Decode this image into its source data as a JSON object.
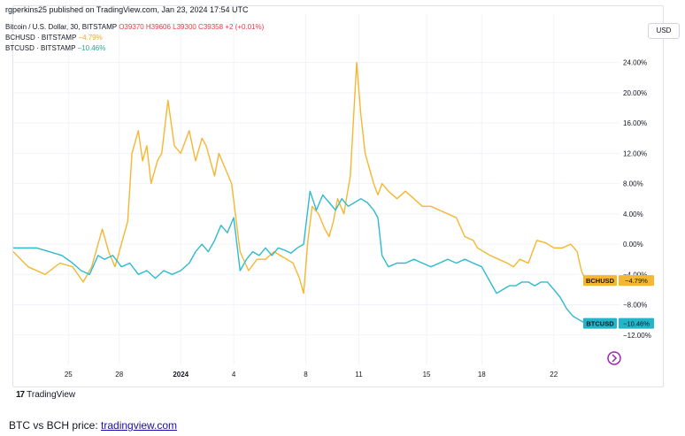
{
  "publisher_line": "rgperkins25 published on TradingView.com, Jan 23, 2024 17:54 UTC",
  "legend": {
    "main_symbol": "Bitcoin / U.S. Dollar, 30, BITSTAMP",
    "ohlc": "O39370 H39606 L39300 C39358 +2 (+0.01%)",
    "bch_label": "BCHUSD · BITSTAMP",
    "bch_change": "−4.79%",
    "btc_label": "BTCUSD · BITSTAMP",
    "btc_change": "−10.46%"
  },
  "currency": "USD",
  "footer": {
    "brand": "TradingView",
    "logo_glyph": "17"
  },
  "caption": {
    "text": "BTC vs BCH price: ",
    "link": "tradingview.com"
  },
  "chart_data": {
    "type": "line",
    "y_unit": "% change",
    "ylim": [
      -16,
      27
    ],
    "ytick_values": [
      24,
      20,
      16,
      12,
      8,
      4,
      0,
      -4,
      -8,
      -12
    ],
    "ytick_labels": [
      "24.00%",
      "20.00%",
      "16.00%",
      "12.00%",
      "8.00%",
      "4.00%",
      "0.00%",
      "−4.00%",
      "−8.00%",
      "−12.00%"
    ],
    "x_tick_labels": [
      "25",
      "28",
      "2024",
      "4",
      "8",
      "11",
      "15",
      "18",
      "22"
    ],
    "x_tick_positions": [
      1.3,
      3.7,
      6.6,
      9.1,
      12.5,
      15.0,
      18.2,
      20.8,
      24.2
    ],
    "xlim": [
      -1.3,
      27.3
    ],
    "grid": true,
    "legend_position": "top-left",
    "series": [
      {
        "name": "BCHUSD",
        "color": "#f5b731",
        "end_label": "BCHUSD",
        "end_value_label": "−4.79%",
        "x": [
          -1.3,
          -0.6,
          0.2,
          0.9,
          1.5,
          2.0,
          2.4,
          2.7,
          2.9,
          3.2,
          3.5,
          3.7,
          3.9,
          4.1,
          4.3,
          4.6,
          4.8,
          5.0,
          5.2,
          5.5,
          5.7,
          6.0,
          6.3,
          6.6,
          7.0,
          7.3,
          7.6,
          7.8,
          8.0,
          8.2,
          8.4,
          8.7,
          9.0,
          9.4,
          9.8,
          10.2,
          10.6,
          11.0,
          11.3,
          11.6,
          11.9,
          12.2,
          12.4,
          12.6,
          12.8,
          13.1,
          13.4,
          13.6,
          13.8,
          14.0,
          14.3,
          14.6,
          14.8,
          14.9,
          15.1,
          15.3,
          15.5,
          15.7,
          15.9,
          16.1,
          16.4,
          16.8,
          17.2,
          17.6,
          18.0,
          18.4,
          18.8,
          19.2,
          19.6,
          20.0,
          20.4,
          20.6,
          20.9,
          21.2,
          21.6,
          22.0,
          22.3,
          22.6,
          23.0,
          23.4,
          23.8,
          24.2,
          24.6,
          25.0,
          25.3,
          25.5,
          25.7
        ],
        "values": [
          -1.0,
          -3.0,
          -4.0,
          -2.5,
          -3.0,
          -5.0,
          -3.0,
          0.0,
          2.0,
          -1.0,
          -3.0,
          -1.0,
          1.0,
          3.0,
          12.0,
          15.0,
          11.0,
          13.0,
          8.0,
          11.0,
          12.0,
          19.0,
          13.0,
          12.0,
          15.0,
          11.0,
          14.0,
          13.0,
          11.0,
          9.0,
          12.0,
          10.0,
          8.0,
          -1.0,
          -3.5,
          -2.0,
          -2.0,
          -1.0,
          -1.5,
          -2.0,
          -2.5,
          -4.5,
          -6.5,
          0.5,
          5.0,
          4.0,
          2.0,
          1.0,
          3.0,
          6.0,
          4.0,
          9.0,
          19.0,
          24.0,
          17.0,
          12.0,
          10.0,
          8.0,
          6.5,
          8.0,
          7.0,
          6.0,
          7.0,
          6.0,
          5.0,
          5.0,
          4.5,
          4.0,
          3.5,
          1.0,
          0.5,
          -0.5,
          -1.0,
          -1.5,
          -2.0,
          -2.5,
          -3.0,
          -2.0,
          -2.5,
          0.5,
          0.2,
          -0.5,
          -0.5,
          0.0,
          -1.0,
          -3.5,
          -4.79
        ]
      },
      {
        "name": "BTCUSD",
        "color": "#2ebbcd",
        "end_label": "BTCUSD",
        "end_value_label": "−10.46%",
        "x": [
          -1.3,
          -0.8,
          -0.2,
          0.4,
          1.0,
          1.5,
          1.9,
          2.3,
          2.7,
          3.0,
          3.4,
          3.8,
          4.2,
          4.6,
          5.0,
          5.4,
          5.8,
          6.2,
          6.6,
          7.0,
          7.3,
          7.6,
          7.9,
          8.2,
          8.5,
          8.8,
          9.1,
          9.4,
          9.7,
          10.0,
          10.3,
          10.6,
          10.9,
          11.2,
          11.5,
          11.8,
          12.1,
          12.4,
          12.7,
          13.0,
          13.3,
          13.6,
          13.9,
          14.2,
          14.5,
          14.8,
          15.1,
          15.4,
          15.7,
          15.9,
          16.1,
          16.4,
          16.8,
          17.2,
          17.6,
          18.0,
          18.4,
          18.8,
          19.2,
          19.6,
          20.0,
          20.4,
          20.8,
          21.2,
          21.5,
          21.8,
          22.1,
          22.4,
          22.7,
          23.0,
          23.3,
          23.6,
          23.9,
          24.2,
          24.5,
          24.8,
          25.1,
          25.4,
          25.7
        ],
        "values": [
          -0.5,
          -0.5,
          -0.5,
          -1.0,
          -1.5,
          -2.5,
          -3.5,
          -4.0,
          -1.5,
          -2.0,
          -1.5,
          -3.0,
          -2.5,
          -4.0,
          -3.5,
          -4.5,
          -3.5,
          -4.0,
          -3.5,
          -2.5,
          -1.0,
          0.0,
          -1.0,
          0.5,
          2.5,
          1.5,
          3.5,
          -3.5,
          -2.0,
          -1.0,
          -1.5,
          -0.5,
          -1.5,
          -0.5,
          -0.8,
          -1.2,
          -0.5,
          0.0,
          7.0,
          4.5,
          6.5,
          5.5,
          4.5,
          6.0,
          5.0,
          5.5,
          6.0,
          5.5,
          4.5,
          3.5,
          -1.5,
          -3.0,
          -2.5,
          -2.5,
          -2.0,
          -2.5,
          -3.0,
          -2.5,
          -2.0,
          -2.5,
          -2.0,
          -2.5,
          -3.0,
          -5.0,
          -6.5,
          -6.0,
          -5.5,
          -5.5,
          -5.0,
          -5.0,
          -5.5,
          -5.0,
          -5.0,
          -6.0,
          -7.0,
          -8.5,
          -9.5,
          -10.0,
          -10.46
        ]
      }
    ]
  }
}
